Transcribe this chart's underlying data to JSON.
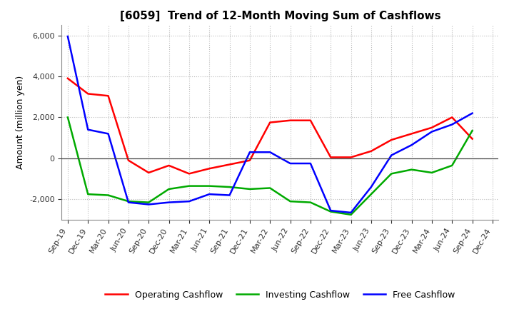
{
  "title": "[6059]  Trend of 12-Month Moving Sum of Cashflows",
  "ylabel": "Amount (million yen)",
  "xlabels": [
    "Sep-19",
    "Dec-19",
    "Mar-20",
    "Jun-20",
    "Sep-20",
    "Dec-20",
    "Mar-21",
    "Jun-21",
    "Sep-21",
    "Dec-21",
    "Mar-22",
    "Jun-22",
    "Sep-22",
    "Dec-22",
    "Mar-23",
    "Jun-23",
    "Sep-23",
    "Dec-23",
    "Mar-24",
    "Jun-24",
    "Sep-24",
    "Dec-24"
  ],
  "operating": [
    3900,
    3150,
    3050,
    -100,
    -700,
    -350,
    -750,
    -500,
    -300,
    -100,
    1750,
    1850,
    1850,
    50,
    50,
    350,
    900,
    1200,
    1500,
    2000,
    950,
    null
  ],
  "investing": [
    2000,
    -1750,
    -1800,
    -2100,
    -2150,
    -1500,
    -1350,
    -1350,
    -1400,
    -1500,
    -1450,
    -2100,
    -2150,
    -2600,
    -2750,
    -1750,
    -750,
    -550,
    -700,
    -350,
    1350,
    null
  ],
  "free": [
    5950,
    1400,
    1200,
    -2150,
    -2250,
    -2150,
    -2100,
    -1750,
    -1800,
    300,
    300,
    -250,
    -250,
    -2550,
    -2650,
    -1400,
    150,
    650,
    1300,
    1650,
    2200,
    null
  ],
  "operating_color": "#ff0000",
  "investing_color": "#00aa00",
  "free_color": "#0000ff",
  "ylim": [
    -3000,
    6500
  ],
  "yticks": [
    -2000,
    0,
    2000,
    4000,
    6000
  ],
  "grid_color": "#aaaaaa",
  "background_color": "#ffffff",
  "legend_labels": [
    "Operating Cashflow",
    "Investing Cashflow",
    "Free Cashflow"
  ]
}
